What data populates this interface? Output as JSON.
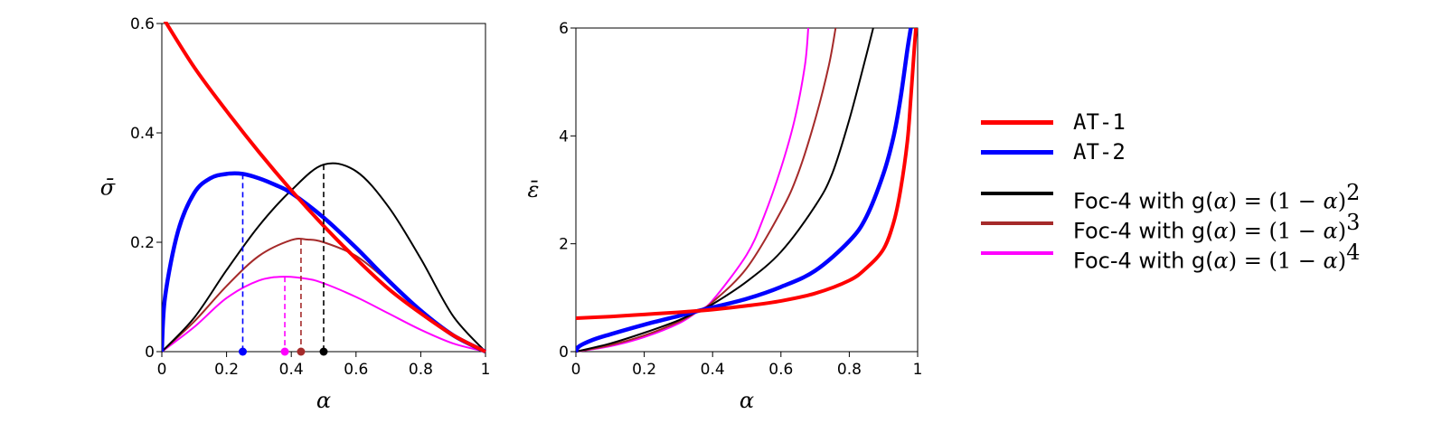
{
  "chart_data": [
    {
      "type": "line",
      "xlabel": "α",
      "ylabel": "σ̄",
      "xlim": [
        0,
        1
      ],
      "ylim": [
        0,
        0.6
      ],
      "xticks": [
        "0",
        "0.2",
        "0.4",
        "0.6",
        "0.8",
        "1"
      ],
      "yticks": [
        "0",
        "0.2",
        "0.4",
        "0.6"
      ],
      "grid": false,
      "series": [
        {
          "name": "AT-1",
          "color": "#ff0000",
          "x": [
            0,
            0.1,
            0.2,
            0.3,
            0.4,
            0.5,
            0.6,
            0.7,
            0.8,
            0.9,
            1.0
          ],
          "y": [
            0.614,
            0.52,
            0.44,
            0.365,
            0.295,
            0.23,
            0.17,
            0.115,
            0.07,
            0.03,
            0.0
          ]
        },
        {
          "name": "AT-2",
          "color": "#0000ff",
          "x": [
            0,
            0.01,
            0.05,
            0.1,
            0.15,
            0.2,
            0.25,
            0.3,
            0.35,
            0.4,
            0.5,
            0.6,
            0.7,
            0.8,
            0.9,
            1.0
          ],
          "y": [
            0,
            0.1,
            0.22,
            0.29,
            0.317,
            0.325,
            0.325,
            0.317,
            0.305,
            0.29,
            0.245,
            0.19,
            0.13,
            0.075,
            0.03,
            0.0
          ]
        },
        {
          "name": "Foc-4 with g(α) = (1 − α)²",
          "color": "#000000",
          "x": [
            0,
            0.1,
            0.2,
            0.3,
            0.4,
            0.5,
            0.6,
            0.7,
            0.8,
            0.9,
            1.0
          ],
          "y": [
            0,
            0.062,
            0.149,
            0.23,
            0.295,
            0.342,
            0.33,
            0.265,
            0.17,
            0.065,
            0.0
          ]
        },
        {
          "name": "Foc-4 with g(α) = (1 − α)³",
          "color": "#a52a2a",
          "x": [
            0,
            0.1,
            0.2,
            0.3,
            0.4,
            0.45,
            0.5,
            0.6,
            0.7,
            0.8,
            0.9,
            1.0
          ],
          "y": [
            0,
            0.055,
            0.12,
            0.175,
            0.204,
            0.205,
            0.2,
            0.175,
            0.128,
            0.075,
            0.028,
            0.0
          ]
        },
        {
          "name": "Foc-4 with g(α) = (1 − α)⁴",
          "color": "#ff00ff",
          "x": [
            0,
            0.1,
            0.2,
            0.3,
            0.38,
            0.45,
            0.5,
            0.6,
            0.7,
            0.8,
            0.9,
            1.0
          ],
          "y": [
            0,
            0.045,
            0.098,
            0.13,
            0.137,
            0.133,
            0.125,
            0.1,
            0.07,
            0.04,
            0.015,
            0.0
          ]
        }
      ],
      "peaks": [
        {
          "x": 0.25,
          "y": 0.325,
          "color": "#0000ff"
        },
        {
          "x": 0.38,
          "y": 0.137,
          "color": "#ff00ff"
        },
        {
          "x": 0.43,
          "y": 0.205,
          "color": "#a52a2a"
        },
        {
          "x": 0.5,
          "y": 0.342,
          "color": "#000000"
        }
      ]
    },
    {
      "type": "line",
      "xlabel": "α",
      "ylabel": "ε̄",
      "xlim": [
        0,
        1
      ],
      "ylim": [
        0,
        6
      ],
      "xticks": [
        "0",
        "0.2",
        "0.4",
        "0.6",
        "0.8",
        "1"
      ],
      "yticks": [
        "0",
        "2",
        "4",
        "6"
      ],
      "grid": false,
      "series": [
        {
          "name": "AT-1",
          "color": "#ff0000",
          "x": [
            0,
            0.1,
            0.2,
            0.3,
            0.4,
            0.5,
            0.6,
            0.7,
            0.8,
            0.85,
            0.9,
            0.93,
            0.95,
            0.97,
            0.98,
            0.99,
            0.995
          ],
          "y": [
            0.62,
            0.65,
            0.69,
            0.73,
            0.78,
            0.85,
            0.94,
            1.08,
            1.32,
            1.55,
            1.9,
            2.4,
            3.0,
            3.9,
            4.7,
            5.6,
            6.0
          ]
        },
        {
          "name": "AT-2",
          "color": "#0000ff",
          "x": [
            0,
            0.01,
            0.05,
            0.1,
            0.2,
            0.3,
            0.36,
            0.4,
            0.5,
            0.6,
            0.7,
            0.8,
            0.85,
            0.9,
            0.93,
            0.95,
            0.97,
            0.98
          ],
          "y": [
            0,
            0.1,
            0.22,
            0.32,
            0.5,
            0.66,
            0.76,
            0.82,
            0.98,
            1.2,
            1.5,
            2.05,
            2.5,
            3.3,
            4.0,
            4.7,
            5.6,
            6.0
          ]
        },
        {
          "name": "Foc-4 with g(α) = (1 − α)²",
          "color": "#000000",
          "x": [
            0,
            0.1,
            0.2,
            0.3,
            0.36,
            0.4,
            0.5,
            0.6,
            0.7,
            0.75,
            0.8,
            0.85,
            0.87
          ],
          "y": [
            0,
            0.15,
            0.35,
            0.58,
            0.76,
            0.88,
            1.3,
            1.85,
            2.7,
            3.3,
            4.3,
            5.5,
            6.0
          ]
        },
        {
          "name": "Foc-4 with g(α) = (1 − α)³",
          "color": "#a52a2a",
          "x": [
            0,
            0.1,
            0.2,
            0.3,
            0.36,
            0.4,
            0.5,
            0.6,
            0.65,
            0.7,
            0.74,
            0.76
          ],
          "y": [
            0,
            0.12,
            0.3,
            0.55,
            0.76,
            0.92,
            1.55,
            2.6,
            3.3,
            4.3,
            5.3,
            6.0
          ]
        },
        {
          "name": "Foc-4 with g(α) = (1 − α)⁴",
          "color": "#ff00ff",
          "x": [
            0,
            0.1,
            0.2,
            0.3,
            0.36,
            0.4,
            0.5,
            0.55,
            0.6,
            0.64,
            0.67,
            0.68
          ],
          "y": [
            0,
            0.1,
            0.27,
            0.52,
            0.76,
            0.95,
            1.8,
            2.5,
            3.4,
            4.3,
            5.3,
            6.0
          ]
        }
      ]
    }
  ],
  "legend": {
    "items": [
      {
        "prefix": "AT-1",
        "color": "#ff0000",
        "kind": "mono"
      },
      {
        "prefix": "AT-2",
        "color": "#0000ff",
        "kind": "mono"
      },
      {
        "prefix": "Foc-4 with g(",
        "alpha": "α",
        "mid": ") = (1 − ",
        "alpha2": "α",
        "close": ")",
        "exp": "2",
        "color": "#000000",
        "kind": "foc"
      },
      {
        "prefix": "Foc-4 with g(",
        "alpha": "α",
        "mid": ") = (1 − ",
        "alpha2": "α",
        "close": ")",
        "exp": "3",
        "color": "#a52a2a",
        "kind": "foc"
      },
      {
        "prefix": "Foc-4 with g(",
        "alpha": "α",
        "mid": ") = (1 − ",
        "alpha2": "α",
        "close": ")",
        "exp": "4",
        "color": "#ff00ff",
        "kind": "foc"
      }
    ]
  }
}
